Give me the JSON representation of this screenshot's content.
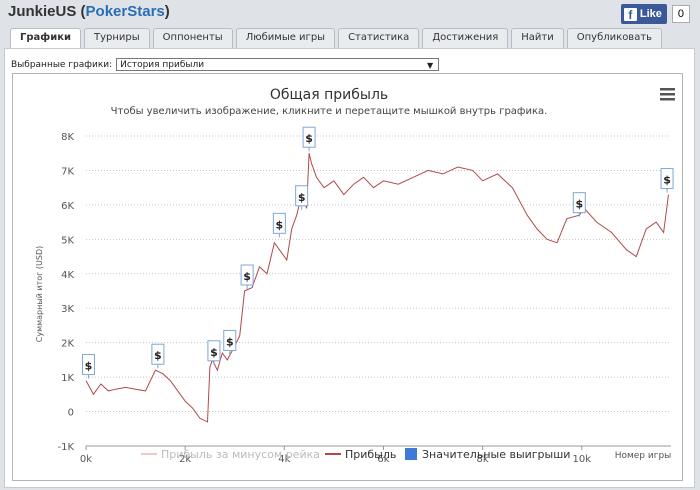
{
  "window": {
    "player": "JunkieUS",
    "paren_open": "(",
    "site": "PokerStars",
    "paren_close": ")"
  },
  "facebook": {
    "like_label": "Like",
    "count": "0",
    "icon": "facebook-f-icon"
  },
  "tabs": [
    {
      "label": "Графики",
      "active": true
    },
    {
      "label": "Турниры",
      "active": false
    },
    {
      "label": "Оппоненты",
      "active": false
    },
    {
      "label": "Любимые игры",
      "active": false
    },
    {
      "label": "Статистика",
      "active": false
    },
    {
      "label": "Достижения",
      "active": false
    },
    {
      "label": "Найти",
      "active": false
    },
    {
      "label": "Опубликовать",
      "active": false
    }
  ],
  "selector": {
    "label": "Выбранные графики:",
    "value": "История прибыли"
  },
  "colors": {
    "profit_line": "#b04a4a",
    "rake_line": "#f0c8c8",
    "big_win": "#3d7bd6",
    "grid": "#c8c8c8"
  },
  "chart_data": {
    "type": "line",
    "title": "Общая прибыль",
    "subtitle": "Чтобы увеличить изображение, кликните и перетащите мышкой внутрь графика.",
    "ylabel": "Суммарный итог (USD)",
    "xlabel": "Номер игры",
    "xlim": [
      0,
      11800
    ],
    "ylim": [
      -1000,
      8000
    ],
    "x_ticks": [
      "0k",
      "2k",
      "4k",
      "6k",
      "8k",
      "10k"
    ],
    "y_ticks": [
      "8K",
      "7K",
      "6K",
      "5K",
      "4K",
      "3K",
      "2K",
      "1K",
      "0",
      "-1K"
    ],
    "legend": [
      "Прибыль за минусом рейка",
      "Прибыль",
      "Значительные выигрыши"
    ],
    "legend_position": "bottom",
    "grid": true,
    "series": [
      {
        "name": "Прибыль",
        "x": [
          0,
          150,
          300,
          450,
          600,
          800,
          1000,
          1200,
          1400,
          1550,
          1700,
          1900,
          2000,
          2150,
          2300,
          2450,
          2500,
          2550,
          2650,
          2750,
          2850,
          3000,
          3100,
          3200,
          3350,
          3500,
          3650,
          3800,
          3950,
          4050,
          4150,
          4250,
          4350,
          4450,
          4500,
          4550,
          4650,
          4800,
          5000,
          5200,
          5400,
          5600,
          5800,
          6000,
          6300,
          6600,
          6900,
          7200,
          7500,
          7800,
          8000,
          8300,
          8600,
          8900,
          9100,
          9300,
          9500,
          9700,
          9950,
          10050,
          10300,
          10600,
          10900,
          11100,
          11300,
          11500,
          11650,
          11750
        ],
        "values": [
          900,
          500,
          800,
          600,
          650,
          700,
          650,
          600,
          1200,
          1100,
          900,
          500,
          300,
          100,
          -200,
          -300,
          1300,
          1500,
          1200,
          1700,
          1500,
          1900,
          2200,
          3500,
          3600,
          4200,
          4000,
          4900,
          4600,
          4400,
          5300,
          5700,
          6300,
          5900,
          7500,
          7200,
          6800,
          6500,
          6700,
          6300,
          6600,
          6800,
          6500,
          6700,
          6600,
          6800,
          7000,
          6900,
          7100,
          7000,
          6700,
          6900,
          6500,
          5700,
          5300,
          5000,
          4900,
          5600,
          5700,
          5900,
          5500,
          5200,
          4700,
          4500,
          5300,
          5500,
          5200,
          6300
        ]
      }
    ],
    "big_wins": [
      {
        "x": 50,
        "y": 900
      },
      {
        "x": 1450,
        "y": 1200
      },
      {
        "x": 2580,
        "y": 1300
      },
      {
        "x": 2900,
        "y": 1600
      },
      {
        "x": 3250,
        "y": 3500
      },
      {
        "x": 3900,
        "y": 5000
      },
      {
        "x": 4350,
        "y": 5800
      },
      {
        "x": 4500,
        "y": 7500
      },
      {
        "x": 9950,
        "y": 5600
      },
      {
        "x": 11720,
        "y": 6300
      }
    ],
    "big_win_marker_text": "$"
  }
}
